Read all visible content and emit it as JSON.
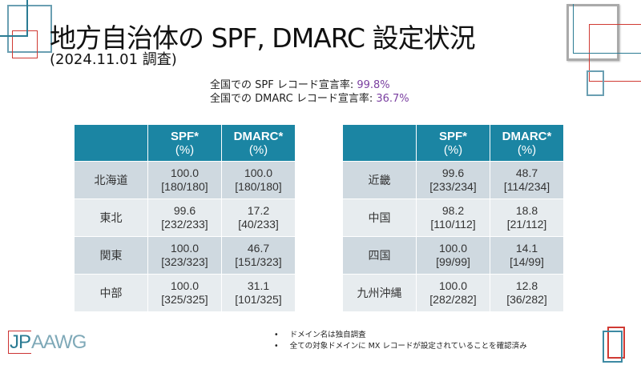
{
  "title": "地方自治体の SPF, DMARC 設定状況",
  "subtitle": "(2024.11.01 調査)",
  "rates": [
    {
      "label": "全国での SPF レコード宣言率: ",
      "value": "99.8%"
    },
    {
      "label": "全国での DMARC レコード宣言率: ",
      "value": "36.7%"
    }
  ],
  "columns": [
    {
      "name": "SPF*",
      "unit": "(%)"
    },
    {
      "name": "DMARC*",
      "unit": "(%)"
    }
  ],
  "left_table": [
    {
      "region": "北海道",
      "spf": "100.0",
      "spf_n": "[180/180]",
      "dmarc": "100.0",
      "dmarc_n": "[180/180]"
    },
    {
      "region": "東北",
      "spf": "99.6",
      "spf_n": "[232/233]",
      "dmarc": "17.2",
      "dmarc_n": "[40/233]"
    },
    {
      "region": "関東",
      "spf": "100.0",
      "spf_n": "[323/323]",
      "dmarc": "46.7",
      "dmarc_n": "[151/323]"
    },
    {
      "region": "中部",
      "spf": "100.0",
      "spf_n": "[325/325]",
      "dmarc": "31.1",
      "dmarc_n": "[101/325]"
    }
  ],
  "right_table": [
    {
      "region": "近畿",
      "spf": "99.6",
      "spf_n": "[233/234]",
      "dmarc": "48.7",
      "dmarc_n": "[114/234]"
    },
    {
      "region": "中国",
      "spf": "98.2",
      "spf_n": "[110/112]",
      "dmarc": "18.8",
      "dmarc_n": "[21/112]"
    },
    {
      "region": "四国",
      "spf": "100.0",
      "spf_n": "[99/99]",
      "dmarc": "14.1",
      "dmarc_n": "[14/99]"
    },
    {
      "region": "九州沖縄",
      "spf": "100.0",
      "spf_n": "[282/282]",
      "dmarc": "12.8",
      "dmarc_n": "[36/282]"
    }
  ],
  "notes": [
    "ドメイン名は独自調査",
    "全ての対象ドメインに MX レコードが設定されていることを確認済み"
  ],
  "logo": {
    "jp": "JP",
    "rest": "AAWG"
  },
  "colors": {
    "header": "#1b85a3",
    "accent_value": "#7a3fa0",
    "deco_red": "#d03a33",
    "deco_blue": "#4b8ea6"
  }
}
